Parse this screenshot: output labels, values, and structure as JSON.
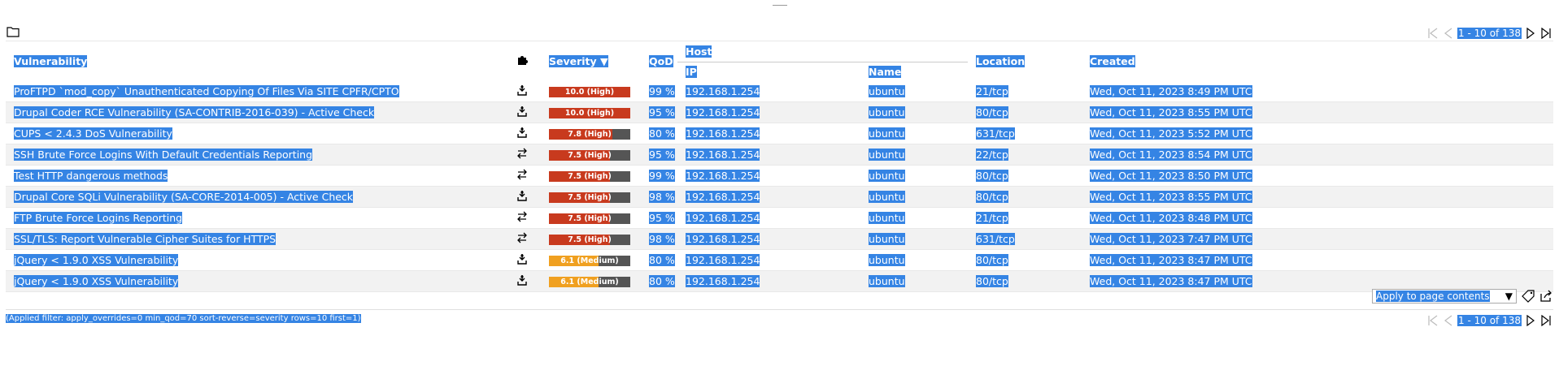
{
  "pagination": {
    "label": "1 - 10 of 138"
  },
  "columns": {
    "vulnerability": "Vulnerability",
    "severity": "Severity ▼",
    "qod": "QoD",
    "host": "Host",
    "ip": "IP",
    "name": "Name",
    "location": "Location",
    "created": "Created"
  },
  "rows": [
    {
      "vuln": "ProFTPD `mod_copy` Unauthenticated Copying Of Files Via SITE CPFR/CPTO",
      "icon": "download-icon",
      "sev": 10.0,
      "sev_label": "10.0 (High)",
      "sev_color": "#c83a1e",
      "qod": "99 %",
      "ip": "192.168.1.254",
      "name": "ubuntu",
      "location": "21/tcp",
      "created": "Wed, Oct 11, 2023 8:49 PM UTC"
    },
    {
      "vuln": "Drupal Coder RCE Vulnerability (SA-CONTRIB-2016-039) - Active Check",
      "icon": "download-icon",
      "sev": 10.0,
      "sev_label": "10.0 (High)",
      "sev_color": "#c83a1e",
      "qod": "95 %",
      "ip": "192.168.1.254",
      "name": "ubuntu",
      "location": "80/tcp",
      "created": "Wed, Oct 11, 2023 8:55 PM UTC"
    },
    {
      "vuln": "CUPS < 2.4.3 DoS Vulnerability",
      "icon": "download-icon",
      "sev": 7.8,
      "sev_label": "7.8 (High)",
      "sev_color": "#c83a1e",
      "qod": "80 %",
      "ip": "192.168.1.254",
      "name": "ubuntu",
      "location": "631/tcp",
      "created": "Wed, Oct 11, 2023 5:52 PM UTC"
    },
    {
      "vuln": "SSH Brute Force Logins With Default Credentials Reporting",
      "icon": "swap-icon",
      "sev": 7.5,
      "sev_label": "7.5 (High)",
      "sev_color": "#c83a1e",
      "qod": "95 %",
      "ip": "192.168.1.254",
      "name": "ubuntu",
      "location": "22/tcp",
      "created": "Wed, Oct 11, 2023 8:54 PM UTC"
    },
    {
      "vuln": "Test HTTP dangerous methods",
      "icon": "swap-icon",
      "sev": 7.5,
      "sev_label": "7.5 (High)",
      "sev_color": "#c83a1e",
      "qod": "99 %",
      "ip": "192.168.1.254",
      "name": "ubuntu",
      "location": "80/tcp",
      "created": "Wed, Oct 11, 2023 8:50 PM UTC"
    },
    {
      "vuln": "Drupal Core SQLi Vulnerability (SA-CORE-2014-005) - Active Check",
      "icon": "download-icon",
      "sev": 7.5,
      "sev_label": "7.5 (High)",
      "sev_color": "#c83a1e",
      "qod": "98 %",
      "ip": "192.168.1.254",
      "name": "ubuntu",
      "location": "80/tcp",
      "created": "Wed, Oct 11, 2023 8:55 PM UTC"
    },
    {
      "vuln": "FTP Brute Force Logins Reporting",
      "icon": "swap-icon",
      "sev": 7.5,
      "sev_label": "7.5 (High)",
      "sev_color": "#c83a1e",
      "qod": "95 %",
      "ip": "192.168.1.254",
      "name": "ubuntu",
      "location": "21/tcp",
      "created": "Wed, Oct 11, 2023 8:48 PM UTC"
    },
    {
      "vuln": "SSL/TLS: Report Vulnerable Cipher Suites for HTTPS",
      "icon": "swap-icon",
      "sev": 7.5,
      "sev_label": "7.5 (High)",
      "sev_color": "#c83a1e",
      "qod": "98 %",
      "ip": "192.168.1.254",
      "name": "ubuntu",
      "location": "631/tcp",
      "created": "Wed, Oct 11, 2023 7:47 PM UTC"
    },
    {
      "vuln": "jQuery < 1.9.0 XSS Vulnerability",
      "icon": "download-icon",
      "sev": 6.1,
      "sev_label": "6.1 (Medium)",
      "sev_color": "#f0a020",
      "qod": "80 %",
      "ip": "192.168.1.254",
      "name": "ubuntu",
      "location": "80/tcp",
      "created": "Wed, Oct 11, 2023 8:47 PM UTC"
    },
    {
      "vuln": "jQuery < 1.9.0 XSS Vulnerability",
      "icon": "download-icon",
      "sev": 6.1,
      "sev_label": "6.1 (Medium)",
      "sev_color": "#f0a020",
      "qod": "80 %",
      "ip": "192.168.1.254",
      "name": "ubuntu",
      "location": "80/tcp",
      "created": "Wed, Oct 11, 2023 8:47 PM UTC"
    }
  ],
  "footer": {
    "apply_select": "Apply to page contents",
    "filter_text": "(Applied filter: apply_overrides=0 min_qod=70 sort-reverse=severity rows=10 first=1)"
  }
}
